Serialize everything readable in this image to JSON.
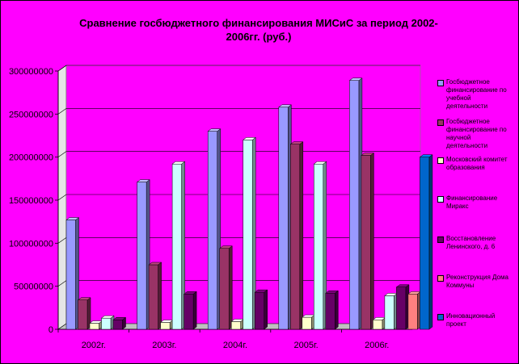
{
  "chart_data": {
    "type": "bar",
    "title_lines": [
      "Сравнение госбюджетного финансирования МИСиС за период 2002-",
      "2006гг. (руб.)"
    ],
    "categories": [
      "2002г.",
      "2003г.",
      "2004г.",
      "2005г.",
      "2006г."
    ],
    "yticks": [
      "0",
      "50000000",
      "100000000",
      "150000000",
      "200000000",
      "250000000",
      "300000000"
    ],
    "ylim": [
      0,
      300000000
    ],
    "grid": true,
    "legend_position": "right",
    "series": [
      {
        "name": "Госбюджетное финансирование по учебной деятельности",
        "color": "#9999ff",
        "values": [
          127000000,
          171000000,
          230000000,
          258000000,
          289000000
        ]
      },
      {
        "name": "Госбюджетное финансирование по научной деятельности",
        "color": "#993366",
        "values": [
          34000000,
          75000000,
          94000000,
          215000000,
          202000000
        ]
      },
      {
        "name": "Московский комитет образования",
        "color": "#ffffcc",
        "values": [
          7000000,
          8000000,
          9000000,
          14000000,
          11000000
        ]
      },
      {
        "name": "Финансирование Миракс",
        "color": "#ccffff",
        "values": [
          13000000,
          192000000,
          220000000,
          192000000,
          39000000
        ]
      },
      {
        "name": "Восстановление Ленинского, д. 6",
        "color": "#660066",
        "values": [
          11000000,
          41000000,
          43000000,
          42000000,
          49000000
        ]
      },
      {
        "name": "Реконструкция Дома Коммуны",
        "color": "#ff8080",
        "values": [
          0,
          0,
          0,
          0,
          41000000
        ]
      },
      {
        "name": "Инновационный проект",
        "color": "#0066cc",
        "values": [
          0,
          0,
          0,
          0,
          200000000
        ]
      }
    ]
  }
}
